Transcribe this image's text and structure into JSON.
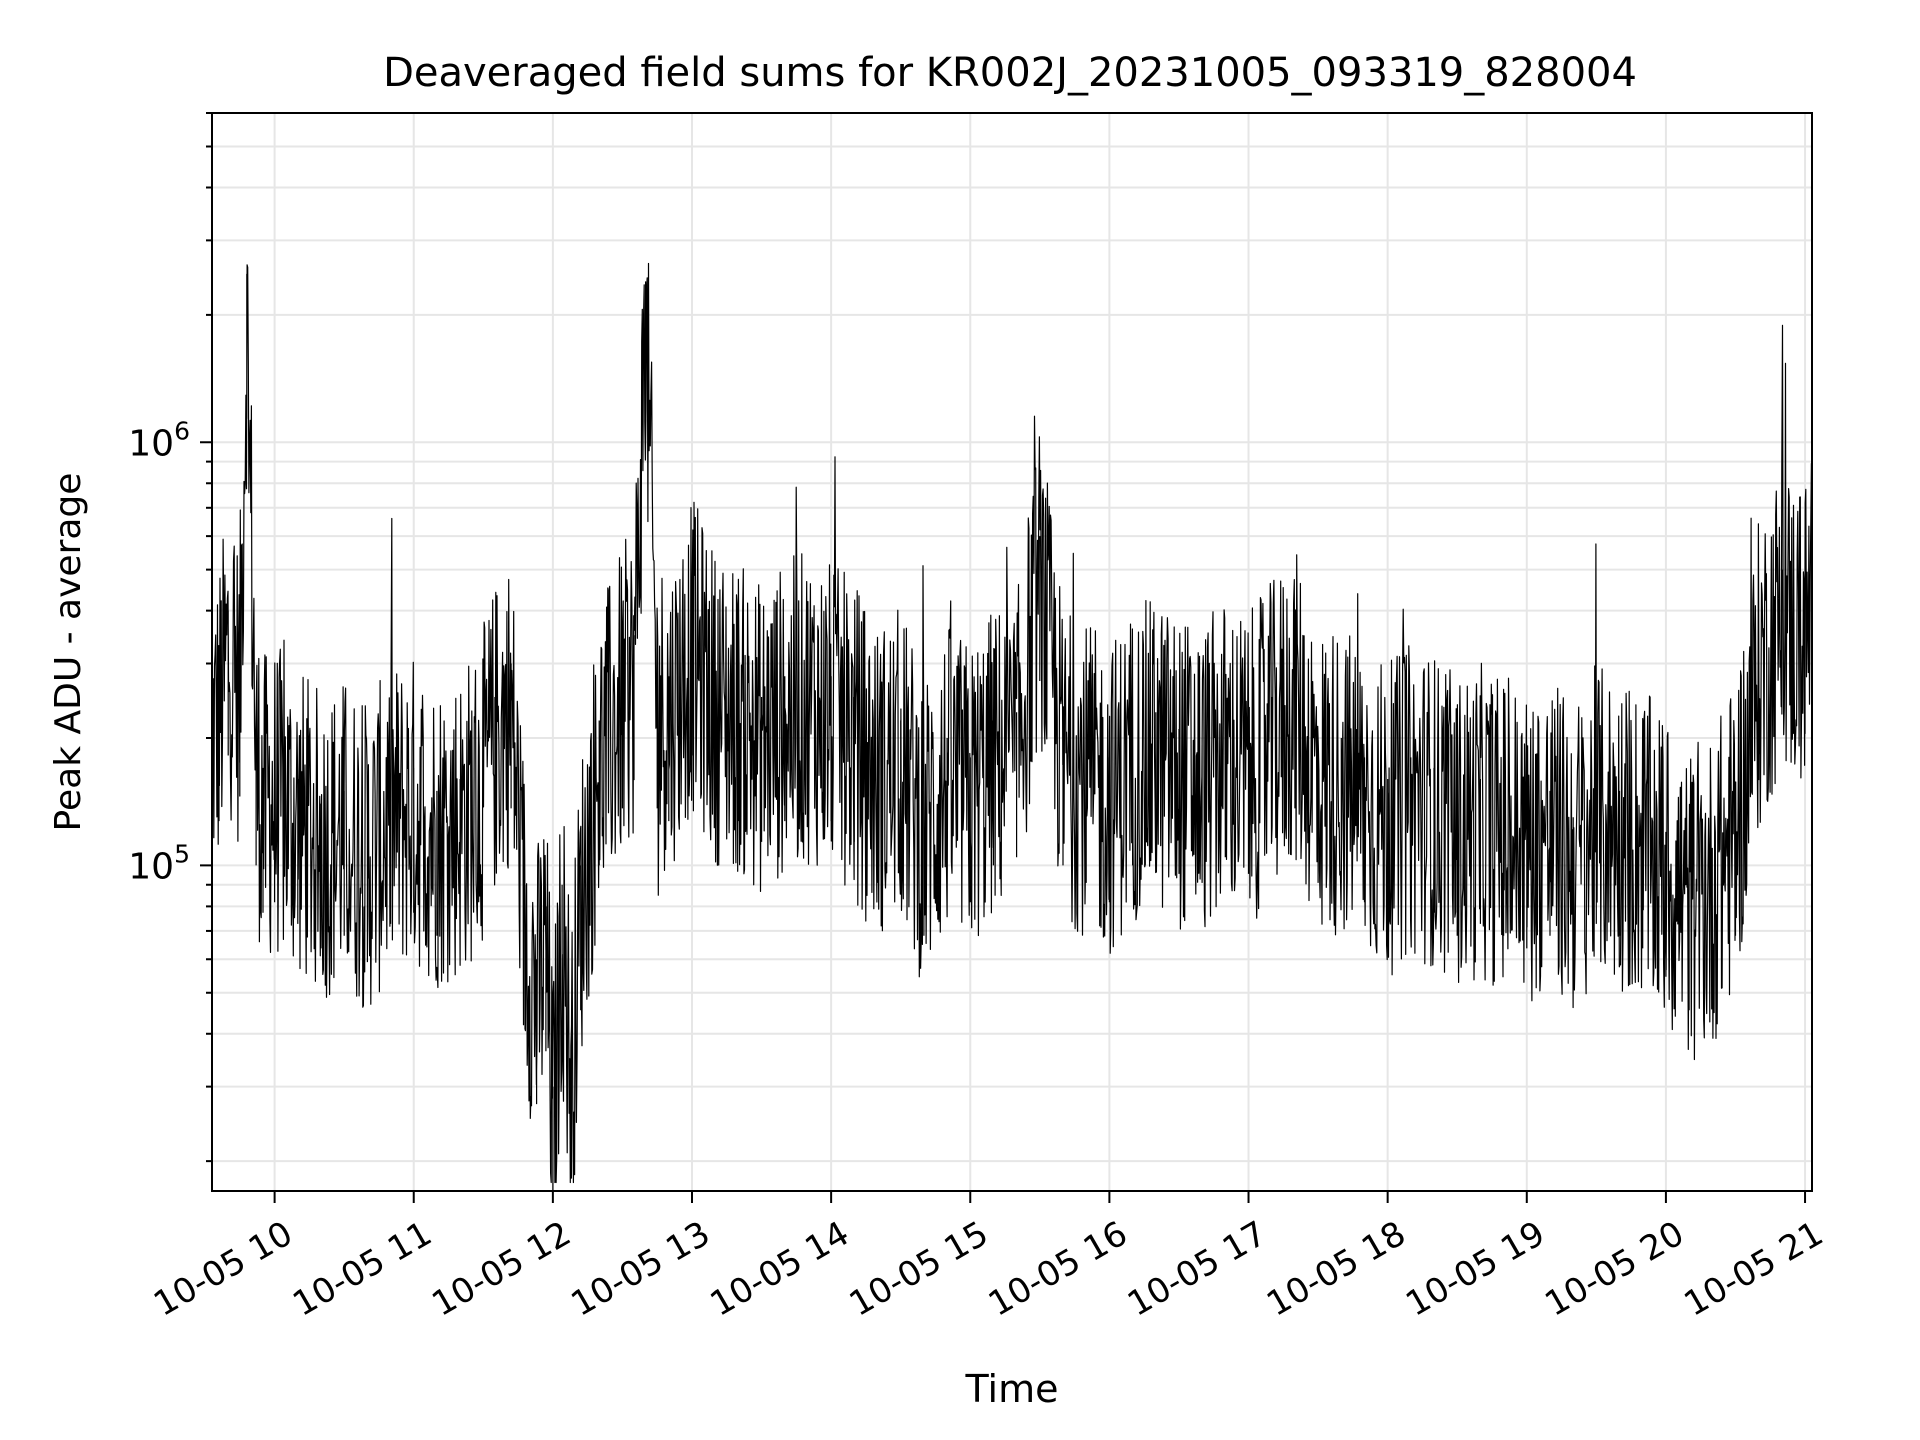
{
  "chart_data": {
    "type": "line",
    "title": "Deaveraged field sums for KR002J_20231005_093319_828004",
    "xlabel": "Time",
    "ylabel": "Peak ADU - average",
    "yscale": "log",
    "ylim": [
      17000,
      6000000
    ],
    "xlim": [
      "2023-10-05T09:33",
      "2023-10-05T21:03"
    ],
    "x_ticks": [
      "2023-10-05T10:00",
      "2023-10-05T11:00",
      "2023-10-05T12:00",
      "2023-10-05T13:00",
      "2023-10-05T14:00",
      "2023-10-05T15:00",
      "2023-10-05T16:00",
      "2023-10-05T17:00",
      "2023-10-05T18:00",
      "2023-10-05T19:00",
      "2023-10-05T20:00",
      "2023-10-05T21:00"
    ],
    "x_tick_labels": [
      "10-05 10",
      "10-05 11",
      "10-05 12",
      "10-05 13",
      "10-05 14",
      "10-05 15",
      "10-05 16",
      "10-05 17",
      "10-05 18",
      "10-05 19",
      "10-05 20",
      "10-05 21"
    ],
    "y_ticks": [
      100000,
      1000000
    ],
    "y_tick_labels": [
      {
        "base": "10",
        "exp": "5"
      },
      {
        "base": "10",
        "exp": "6"
      }
    ],
    "grid": "both",
    "line_color": "#000000",
    "grid_color": "#e6e6e6",
    "series": [
      {
        "x": [
          "2023-10-05T09:33",
          "2023-10-05T09:36",
          "2023-10-05T09:40",
          "2023-10-05T09:45",
          "2023-10-05T09:48",
          "2023-10-05T09:52",
          "2023-10-05T09:55",
          "2023-10-05T10:00",
          "2023-10-05T10:10",
          "2023-10-05T10:20",
          "2023-10-05T10:30",
          "2023-10-05T10:40",
          "2023-10-05T10:50",
          "2023-10-05T11:00",
          "2023-10-05T11:10",
          "2023-10-05T11:20",
          "2023-10-05T11:28",
          "2023-10-05T11:35",
          "2023-10-05T11:42",
          "2023-10-05T11:48",
          "2023-10-05T11:53",
          "2023-10-05T11:57",
          "2023-10-05T12:00",
          "2023-10-05T12:04",
          "2023-10-05T12:08",
          "2023-10-05T12:12",
          "2023-10-05T12:20",
          "2023-10-05T12:30",
          "2023-10-05T12:35",
          "2023-10-05T12:40",
          "2023-10-05T12:45",
          "2023-10-05T12:50",
          "2023-10-05T13:00",
          "2023-10-05T13:10",
          "2023-10-05T13:20",
          "2023-10-05T13:30",
          "2023-10-05T13:40",
          "2023-10-05T13:50",
          "2023-10-05T14:00",
          "2023-10-05T14:10",
          "2023-10-05T14:20",
          "2023-10-05T14:30",
          "2023-10-05T14:40",
          "2023-10-05T14:50",
          "2023-10-05T15:00",
          "2023-10-05T15:10",
          "2023-10-05T15:20",
          "2023-10-05T15:30",
          "2023-10-05T15:40",
          "2023-10-05T15:50",
          "2023-10-05T16:00",
          "2023-10-05T16:10",
          "2023-10-05T16:20",
          "2023-10-05T16:30",
          "2023-10-05T16:40",
          "2023-10-05T16:50",
          "2023-10-05T17:00",
          "2023-10-05T17:10",
          "2023-10-05T17:20",
          "2023-10-05T17:30",
          "2023-10-05T17:40",
          "2023-10-05T17:50",
          "2023-10-05T18:00",
          "2023-10-05T18:10",
          "2023-10-05T18:20",
          "2023-10-05T18:30",
          "2023-10-05T18:40",
          "2023-10-05T18:50",
          "2023-10-05T19:00",
          "2023-10-05T19:10",
          "2023-10-05T19:20",
          "2023-10-05T19:30",
          "2023-10-05T19:40",
          "2023-10-05T19:50",
          "2023-10-05T20:00",
          "2023-10-05T20:10",
          "2023-10-05T20:20",
          "2023-10-05T20:30",
          "2023-10-05T20:40",
          "2023-10-05T20:50",
          "2023-10-05T20:55",
          "2023-10-05T21:00",
          "2023-10-05T21:03"
        ],
        "y": [
          250000,
          280000,
          400000,
          320000,
          2500000,
          220000,
          170000,
          180000,
          160000,
          140000,
          150000,
          130000,
          160000,
          170000,
          150000,
          160000,
          180000,
          250000,
          300000,
          90000,
          60000,
          80000,
          30000,
          90000,
          40000,
          100000,
          220000,
          300000,
          350000,
          2400000,
          300000,
          280000,
          400000,
          300000,
          280000,
          250000,
          280000,
          300000,
          280000,
          250000,
          200000,
          220000,
          150000,
          200000,
          180000,
          220000,
          230000,
          600000,
          220000,
          200000,
          180000,
          220000,
          230000,
          210000,
          200000,
          230000,
          210000,
          250000,
          300000,
          200000,
          200000,
          180000,
          160000,
          180000,
          170000,
          150000,
          160000,
          150000,
          140000,
          150000,
          130000,
          160000,
          150000,
          140000,
          120000,
          100000,
          110000,
          150000,
          350000,
          500000,
          450000,
          450000,
          500000
        ]
      }
    ]
  }
}
